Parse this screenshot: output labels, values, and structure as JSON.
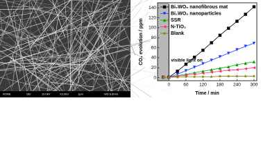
{
  "sem_image": {
    "info_bar": [
      "NONE",
      "SEI",
      "10.0kV",
      "X2,000",
      "1μm",
      "WD 6.6mm"
    ]
  },
  "chart_data": {
    "type": "line",
    "x_label": "Time / min",
    "y_label": "CO₂ evolution / ppm",
    "annotation": "visible light on",
    "light_on_x": 0,
    "x": [
      -20,
      0,
      30,
      60,
      90,
      120,
      150,
      180,
      210,
      240,
      270,
      300
    ],
    "series": [
      {
        "name": "Bi₂WO₆ nanofibrous mat",
        "color": "#000000",
        "marker": "square",
        "values": [
          1,
          1,
          13,
          27,
          41,
          55,
          70,
          85,
          99,
          113,
          127,
          142
        ]
      },
      {
        "name": "Bi₂WO₆ nanoparticles",
        "color": "#1f3cff",
        "marker": "triangle-down",
        "values": [
          1,
          1,
          7,
          14,
          21,
          28,
          35,
          42,
          49,
          56,
          63,
          69
        ]
      },
      {
        "name": "SSR",
        "color": "#00a000",
        "marker": "triangle-up",
        "values": [
          1,
          1,
          4,
          7,
          10,
          13,
          16,
          19,
          22,
          26,
          29,
          32
        ]
      },
      {
        "name": "N-TiO₂",
        "color": "#ff3070",
        "marker": "triangle-left",
        "values": [
          1,
          1,
          3,
          5,
          7,
          9,
          11,
          13,
          15,
          16,
          18,
          20
        ]
      },
      {
        "name": "Blank",
        "color": "#808000",
        "marker": "star",
        "values": [
          1,
          1,
          1,
          2,
          2,
          2,
          2,
          3,
          3,
          3,
          3,
          3
        ]
      }
    ],
    "xlim": [
      -40,
      310
    ],
    "ylim": [
      -6,
      150
    ],
    "xticks": [
      0,
      60,
      120,
      180,
      240,
      300
    ],
    "yticks": [
      0,
      20,
      40,
      60,
      80,
      100,
      120,
      140
    ],
    "legend": "upper left"
  }
}
